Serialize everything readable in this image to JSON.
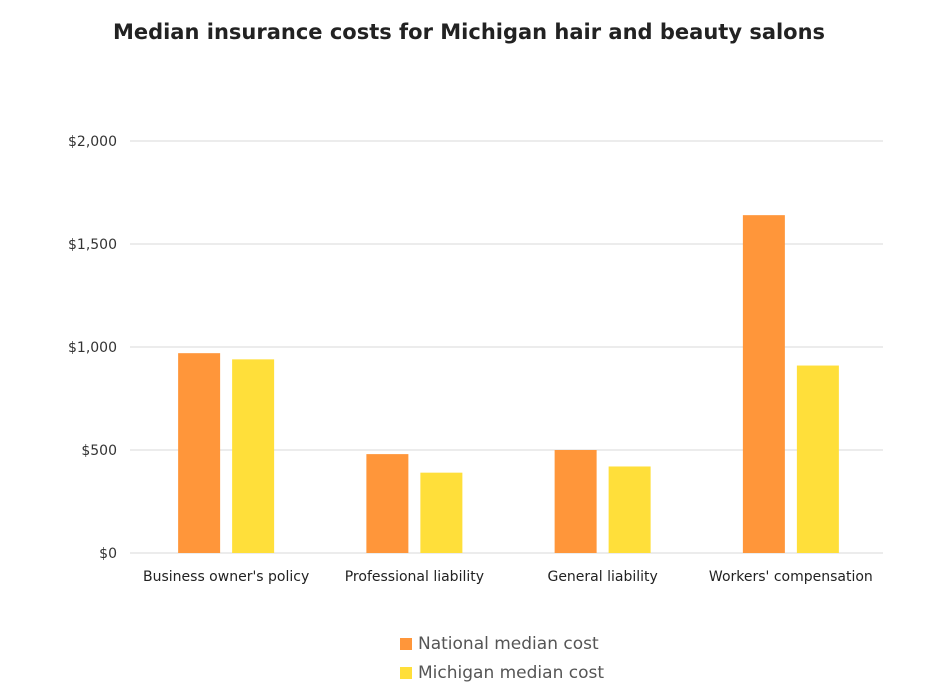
{
  "chart_data": {
    "type": "bar",
    "title": "Median insurance costs for Michigan hair and beauty salons",
    "xlabel": "",
    "ylabel": "",
    "ylim": [
      0,
      2000
    ],
    "yticks": [
      0,
      500,
      1000,
      1500,
      2000
    ],
    "ytick_labels": [
      "$0",
      "$500",
      "$1,000",
      "$1,500",
      "$2,000"
    ],
    "grid": true,
    "legend_position": "bottom",
    "categories": [
      "Business owner's policy",
      "Professional liability",
      "General liability",
      "Workers' compensation"
    ],
    "series": [
      {
        "name": "National median cost",
        "color": "#FF963A",
        "values": [
          970,
          480,
          500,
          1640
        ]
      },
      {
        "name": "Michigan median cost",
        "color": "#FFDF3A",
        "values": [
          940,
          390,
          420,
          910
        ]
      }
    ]
  }
}
